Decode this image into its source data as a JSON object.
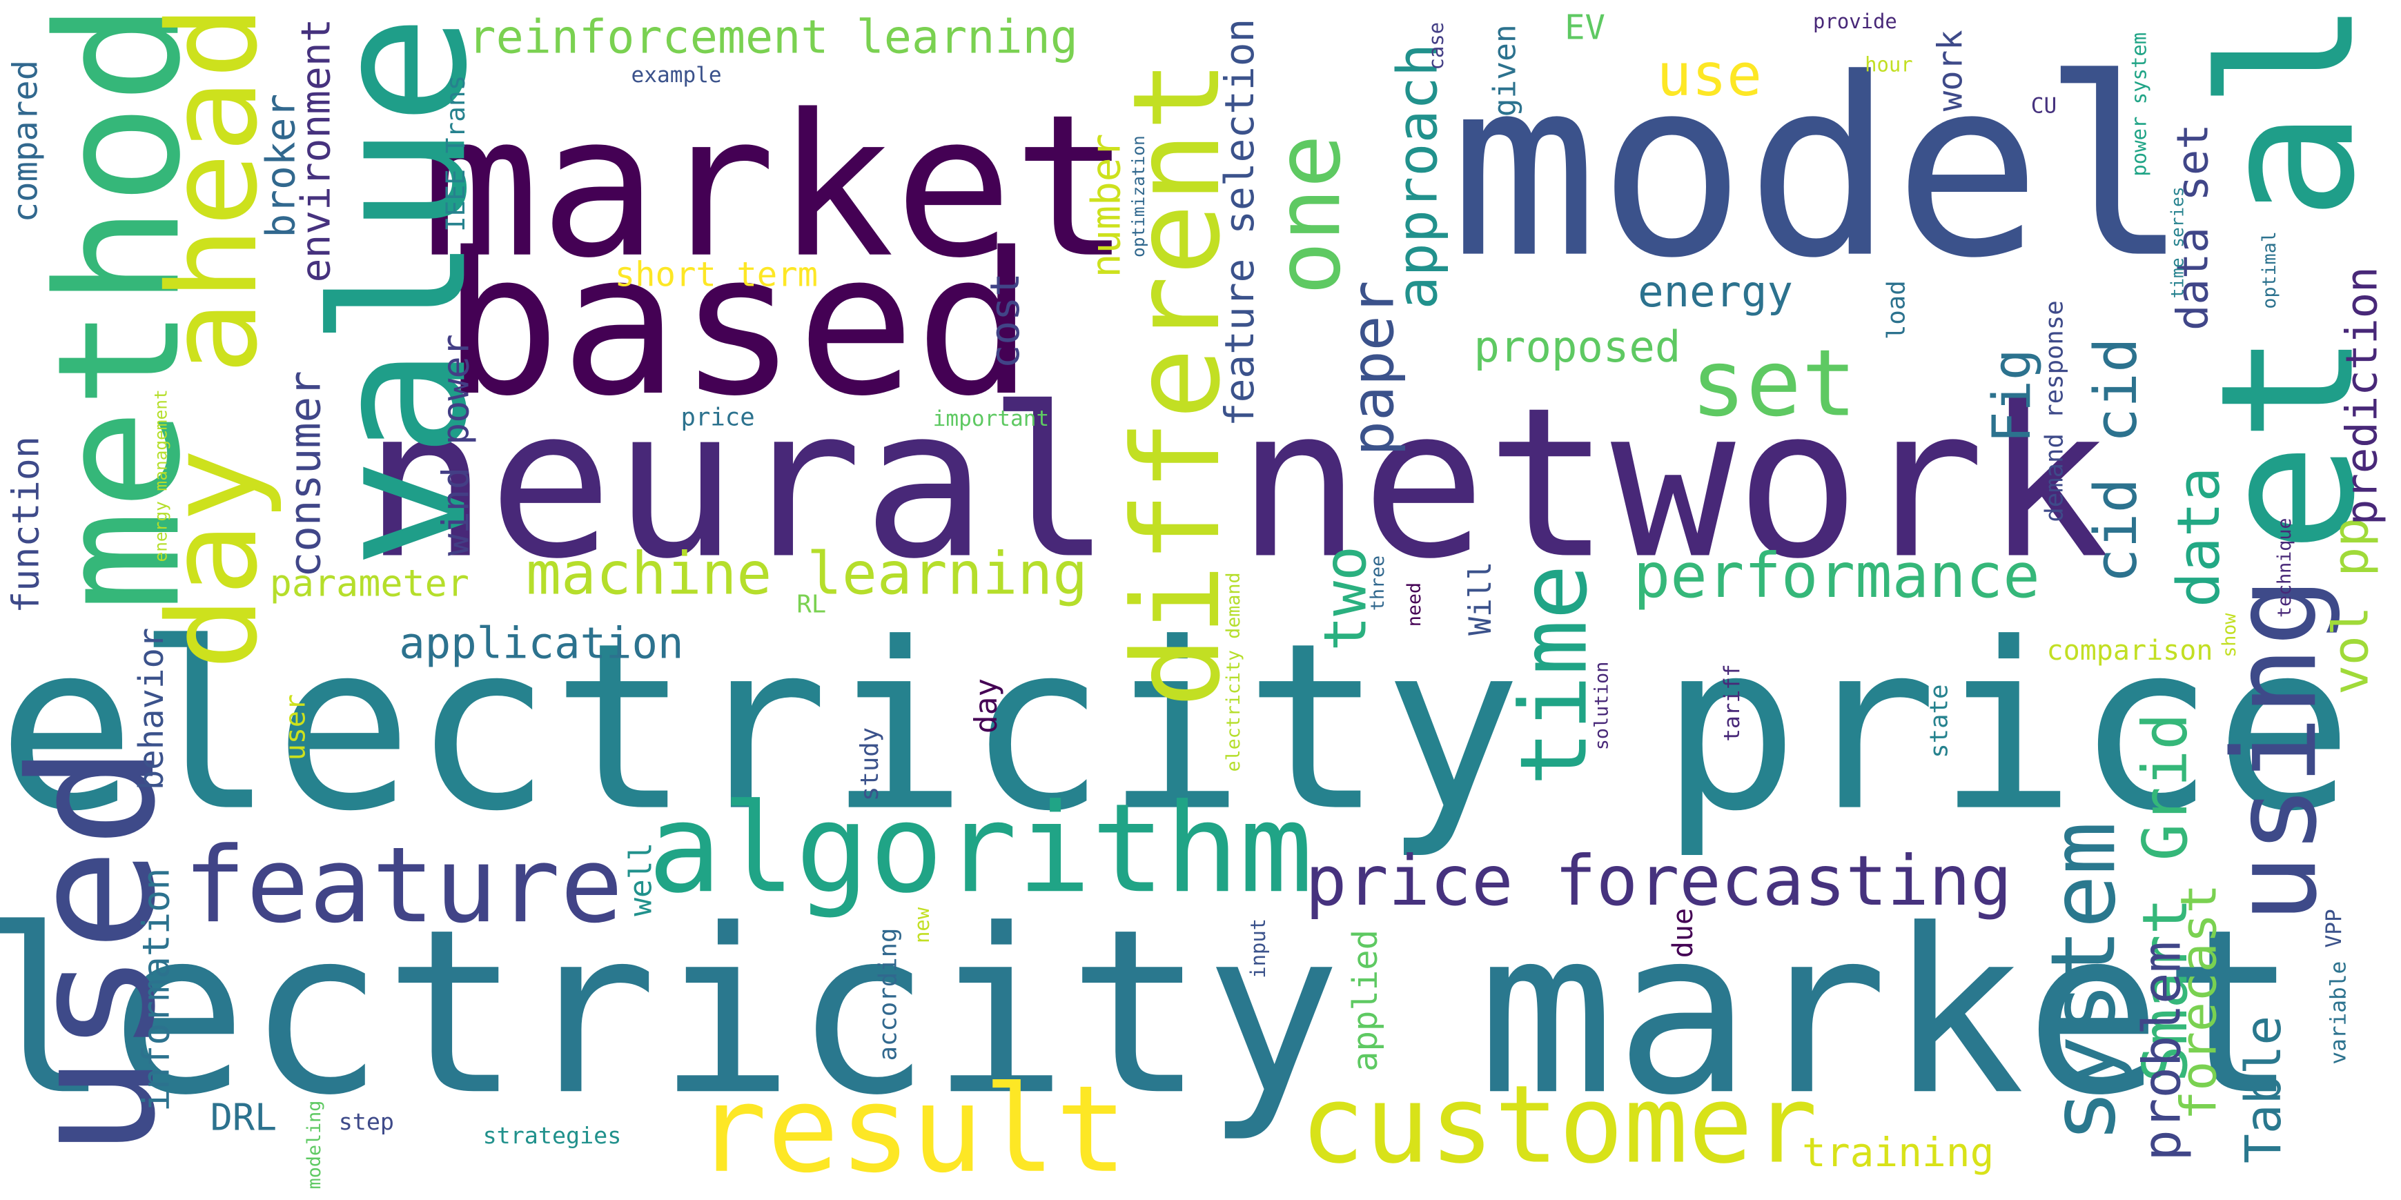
{
  "words": [
    {
      "text": "model",
      "color": "#3b528b"
    },
    {
      "text": "market",
      "color": "#440154"
    },
    {
      "text": "based",
      "color": "#440154"
    },
    {
      "text": "neural network",
      "color": "#482878"
    },
    {
      "text": "electricity price",
      "color": "#26828e"
    },
    {
      "text": "electricity market",
      "color": "#2a788e"
    },
    {
      "text": "value",
      "color": "#1f9e89"
    },
    {
      "text": "method",
      "color": "#35b779"
    },
    {
      "text": "used",
      "color": "#3e4a89"
    },
    {
      "text": "day ahead",
      "color": "#cde11d"
    },
    {
      "text": "different",
      "color": "#c2df23"
    },
    {
      "text": "et al",
      "color": "#1f9e89"
    },
    {
      "text": "algorithm",
      "color": "#20a486"
    },
    {
      "text": "feature",
      "color": "#414487"
    },
    {
      "text": "result",
      "color": "#fde725"
    },
    {
      "text": "customer",
      "color": "#d8e219"
    },
    {
      "text": "price forecasting",
      "color": "#46327e"
    },
    {
      "text": "using",
      "color": "#3e4a89"
    },
    {
      "text": "system",
      "color": "#2a788e"
    },
    {
      "text": "one",
      "color": "#5ec962"
    },
    {
      "text": "set",
      "color": "#5ec962"
    },
    {
      "text": "time",
      "color": "#20a486"
    },
    {
      "text": "performance",
      "color": "#35b779"
    },
    {
      "text": "machine learning",
      "color": "#b5de2b"
    },
    {
      "text": "reinforcement learning",
      "color": "#7ad151"
    },
    {
      "text": "use",
      "color": "#fde725"
    },
    {
      "text": "paper",
      "color": "#3b528b"
    },
    {
      "text": "approach",
      "color": "#21918c"
    },
    {
      "text": "two",
      "color": "#2ab07f"
    },
    {
      "text": "cid cid",
      "color": "#2c728e"
    },
    {
      "text": "Smart Grid",
      "color": "#35b779"
    },
    {
      "text": "data",
      "color": "#22a884"
    },
    {
      "text": "Fig",
      "color": "#2c728e"
    },
    {
      "text": "problem",
      "color": "#404688"
    },
    {
      "text": "forecast",
      "color": "#7ad151"
    },
    {
      "text": "Table",
      "color": "#2a788e"
    },
    {
      "text": "vol pp",
      "color": "#a0da39"
    },
    {
      "text": "prediction",
      "color": "#482878"
    },
    {
      "text": "data set",
      "color": "#404688"
    },
    {
      "text": "energy",
      "color": "#2c728e"
    },
    {
      "text": "proposed",
      "color": "#5ec962"
    },
    {
      "text": "application",
      "color": "#2c728e"
    },
    {
      "text": "parameter",
      "color": "#b5de2b"
    },
    {
      "text": "consumer",
      "color": "#404688"
    },
    {
      "text": "wind power",
      "color": "#433e85"
    },
    {
      "text": "broker",
      "color": "#31688e"
    },
    {
      "text": "environment",
      "color": "#46327e"
    },
    {
      "text": "feature selection",
      "color": "#3b528b"
    },
    {
      "text": "cost",
      "color": "#414487"
    },
    {
      "text": "number",
      "color": "#cde11d"
    },
    {
      "text": "short term",
      "color": "#fde725"
    },
    {
      "text": "function",
      "color": "#3e4a89"
    },
    {
      "text": "compared",
      "color": "#31688e"
    },
    {
      "text": "information",
      "color": "#2c728e"
    },
    {
      "text": "DRL",
      "color": "#2c728e"
    },
    {
      "text": "behavior",
      "color": "#3b528b"
    },
    {
      "text": "user",
      "color": "#cde11d"
    },
    {
      "text": "training",
      "color": "#d8e219"
    },
    {
      "text": "applied",
      "color": "#5ec962"
    },
    {
      "text": "comparison",
      "color": "#c2df23"
    },
    {
      "text": "EV",
      "color": "#5ec962"
    },
    {
      "text": "work",
      "color": "#3e4a89"
    },
    {
      "text": "given",
      "color": "#2c728e"
    },
    {
      "text": "IEEE Trans",
      "color": "#26828e"
    },
    {
      "text": "price",
      "color": "#2c728e"
    },
    {
      "text": "important",
      "color": "#5ec962"
    },
    {
      "text": "RL",
      "color": "#7ad151"
    },
    {
      "text": "Will",
      "color": "#3b528b"
    },
    {
      "text": "day",
      "color": "#440154"
    },
    {
      "text": "well",
      "color": "#21918c"
    },
    {
      "text": "study",
      "color": "#3b528b"
    },
    {
      "text": "according",
      "color": "#31688e"
    },
    {
      "text": "new",
      "color": "#c2df23"
    },
    {
      "text": "input",
      "color": "#3b528b"
    },
    {
      "text": "due",
      "color": "#440154"
    },
    {
      "text": "step",
      "color": "#3e4a89"
    },
    {
      "text": "strategies",
      "color": "#21918c"
    },
    {
      "text": "modeling",
      "color": "#5ec962"
    },
    {
      "text": "energy management",
      "color": "#b5de2b"
    },
    {
      "text": "electricity demand",
      "color": "#b5de2b"
    },
    {
      "text": "three",
      "color": "#31688e"
    },
    {
      "text": "need",
      "color": "#440154"
    },
    {
      "text": "solution",
      "color": "#482878"
    },
    {
      "text": "tariff",
      "color": "#482878"
    },
    {
      "text": "state",
      "color": "#26828e"
    },
    {
      "text": "show",
      "color": "#c2df23"
    },
    {
      "text": "technique",
      "color": "#482878"
    },
    {
      "text": "demand response",
      "color": "#3e4a89"
    },
    {
      "text": "load",
      "color": "#2c728e"
    },
    {
      "text": "optimal",
      "color": "#2c728e"
    },
    {
      "text": "time series",
      "color": "#26828e"
    },
    {
      "text": "power system",
      "color": "#20a486"
    },
    {
      "text": "case",
      "color": "#433e85"
    },
    {
      "text": "hour",
      "color": "#c2df23"
    },
    {
      "text": "provide",
      "color": "#482878"
    },
    {
      "text": "CU",
      "color": "#46327e"
    },
    {
      "text": "example",
      "color": "#3b528b"
    },
    {
      "text": "optimization",
      "color": "#31688e"
    },
    {
      "text": "variable",
      "color": "#2c728e"
    },
    {
      "text": "VPP",
      "color": "#3b528b"
    }
  ]
}
